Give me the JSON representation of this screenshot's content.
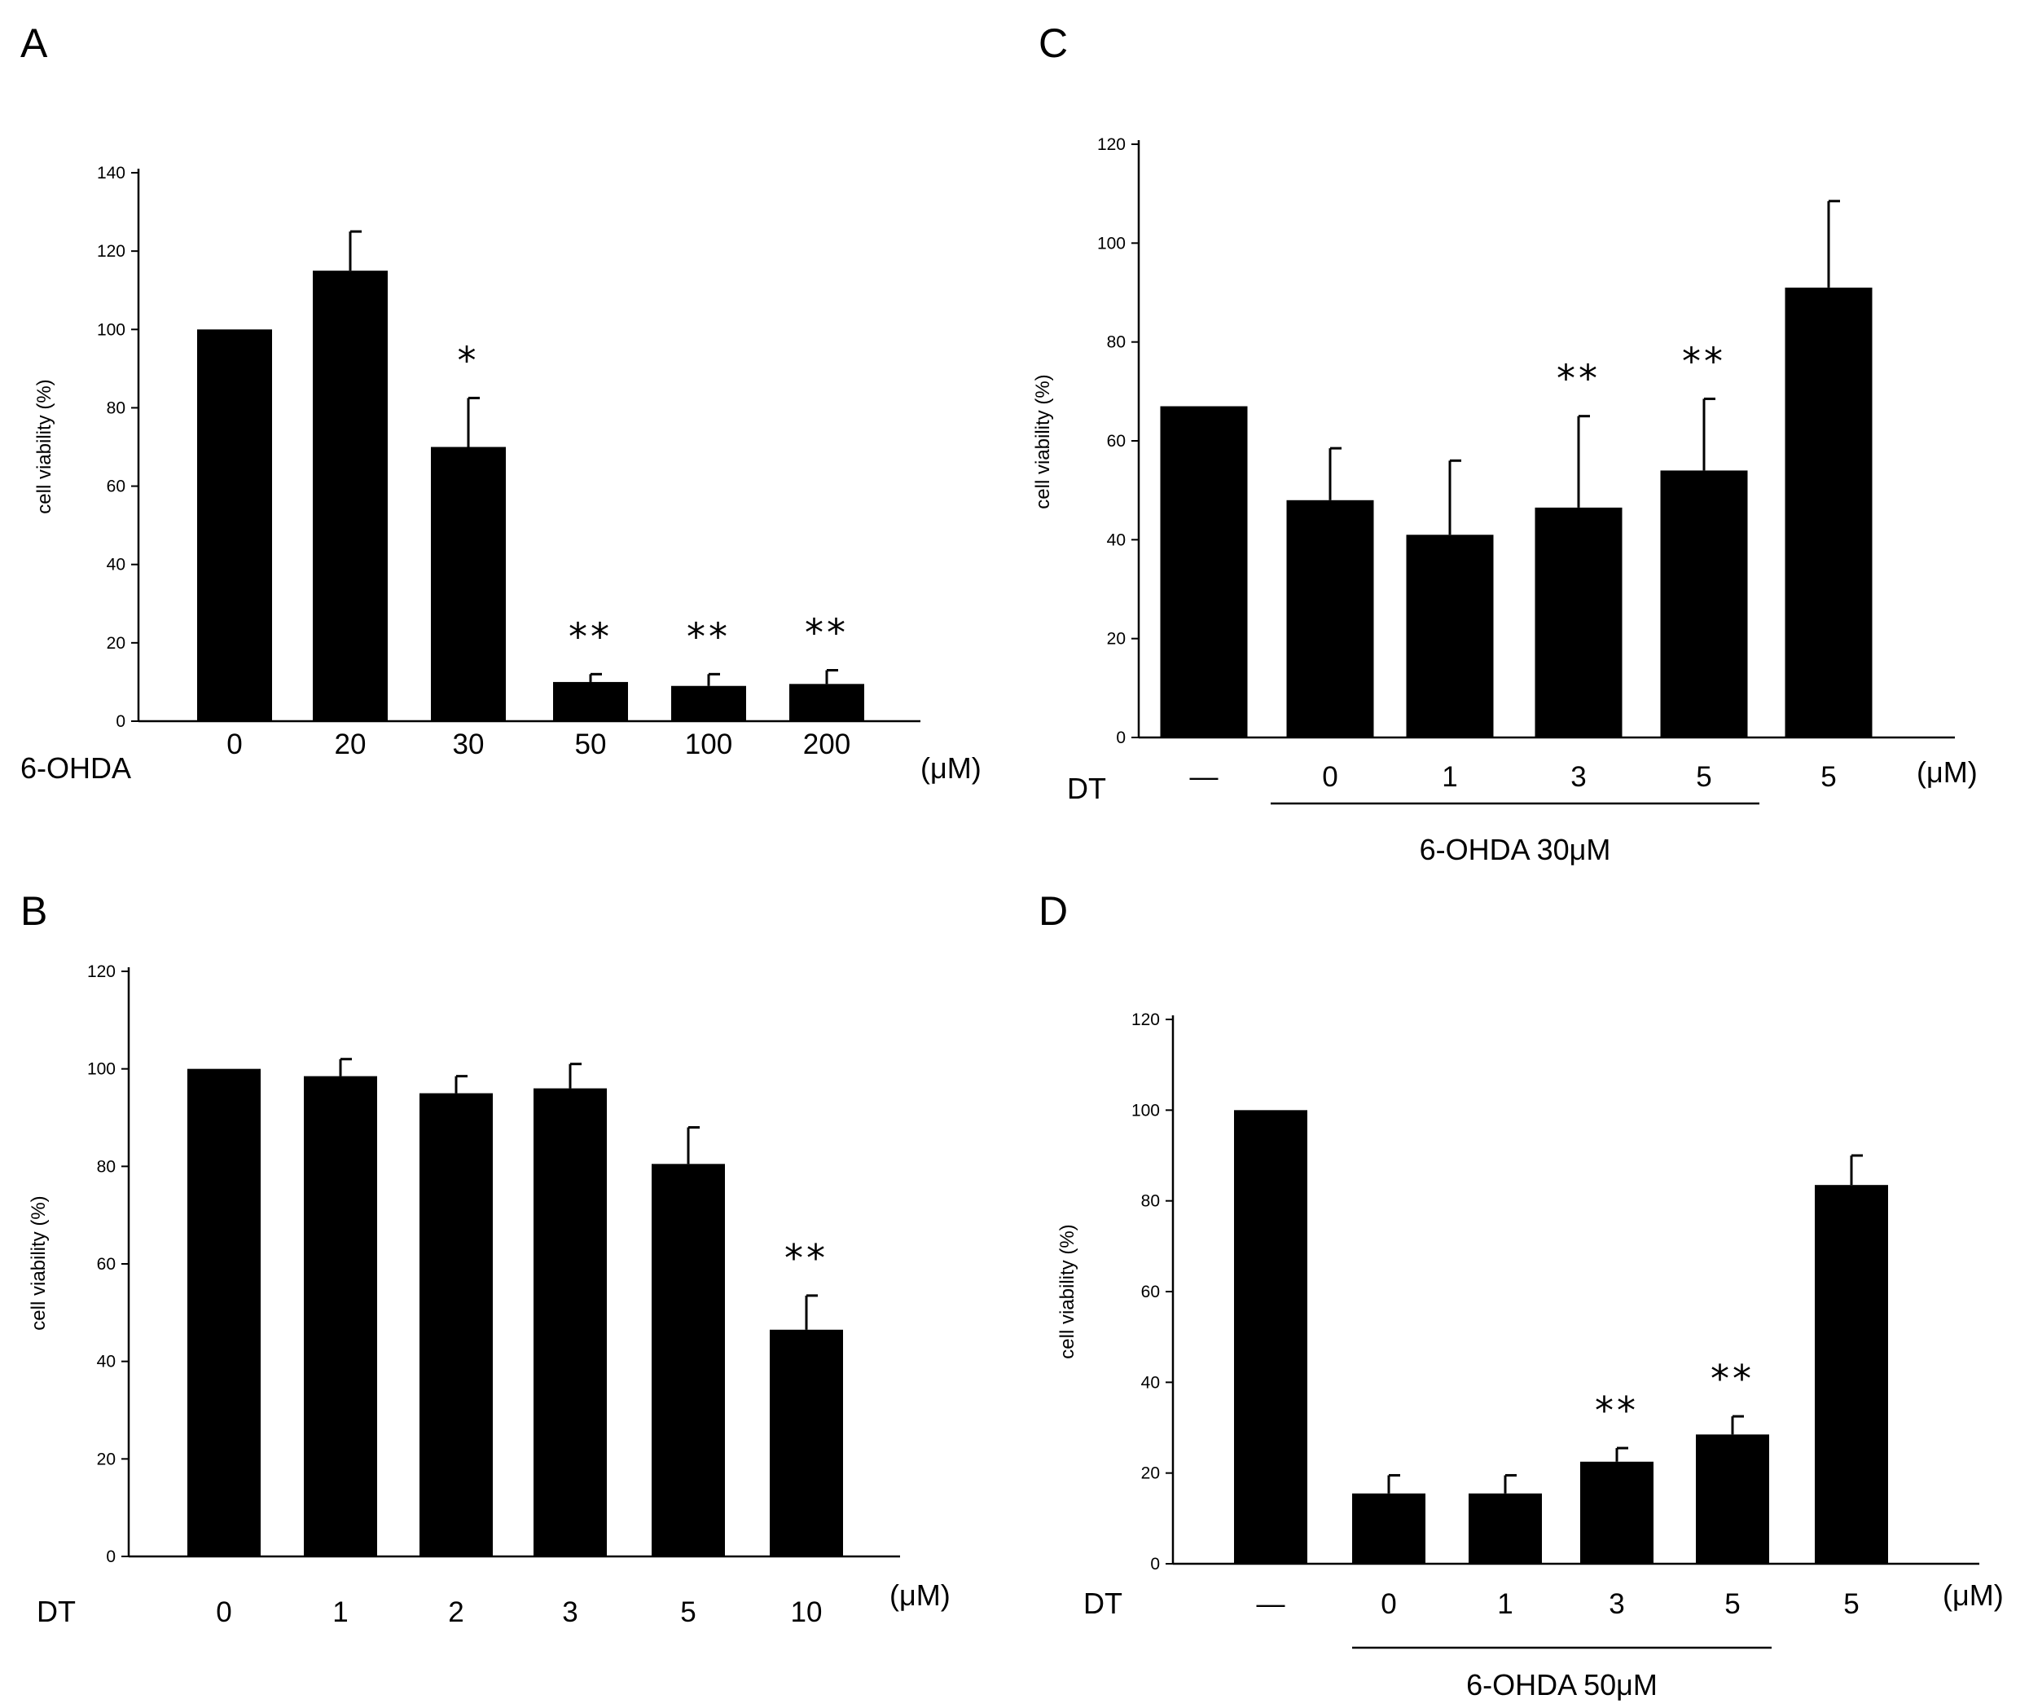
{
  "chart_data": [
    {
      "panel": "A",
      "type": "bar",
      "ylabel": "cell viability (%)",
      "ylim": [
        0,
        140
      ],
      "yticks": [
        0,
        20,
        40,
        60,
        80,
        100,
        120,
        140
      ],
      "row_label": "6-OHDA",
      "unit": "(μM)",
      "categories": [
        "0",
        "20",
        "30",
        "50",
        "100",
        "200"
      ],
      "values": [
        100,
        115,
        70,
        10,
        9,
        9.5
      ],
      "errors": [
        0,
        10,
        12.5,
        2,
        3,
        3.5
      ],
      "annotations": [
        "",
        "",
        "*",
        "**",
        "**",
        "**"
      ],
      "bracket": ""
    },
    {
      "panel": "B",
      "type": "bar",
      "ylabel": "cell viability (%)",
      "ylim": [
        0,
        120
      ],
      "yticks": [
        0,
        20,
        40,
        60,
        80,
        100,
        120
      ],
      "row_label": "DT",
      "unit": "(μM)",
      "categories": [
        "0",
        "1",
        "2",
        "3",
        "5",
        "10"
      ],
      "values": [
        100,
        98.5,
        95,
        96,
        80.5,
        46.5
      ],
      "errors": [
        0,
        3.5,
        3.5,
        5,
        7.5,
        7
      ],
      "annotations": [
        "",
        "",
        "",
        "",
        "",
        "**"
      ],
      "bracket": ""
    },
    {
      "panel": "C",
      "type": "bar",
      "ylabel": "cell viability (%)",
      "ylim": [
        0,
        120
      ],
      "yticks": [
        0,
        20,
        40,
        60,
        80,
        100,
        120
      ],
      "row_label": "DT",
      "unit": "(μM)",
      "categories": [
        "—",
        "0",
        "1",
        "3",
        "5",
        "5"
      ],
      "values": [
        67,
        48,
        41,
        46.5,
        54,
        91
      ],
      "errors": [
        0,
        10.5,
        15,
        18.5,
        14.5,
        17.5
      ],
      "annotations": [
        "",
        "",
        "",
        "**",
        "**",
        ""
      ],
      "bracket": "6-OHDA 30μM"
    },
    {
      "panel": "D",
      "type": "bar",
      "ylabel": "cell viability (%)",
      "ylim": [
        0,
        120
      ],
      "yticks": [
        0,
        20,
        40,
        60,
        80,
        100,
        120
      ],
      "row_label": "DT",
      "unit": "(μM)",
      "categories": [
        "—",
        "0",
        "1",
        "3",
        "5",
        "5"
      ],
      "values": [
        100,
        15.5,
        15.5,
        22.5,
        28.5,
        83.5
      ],
      "errors": [
        0,
        4,
        4,
        3,
        4,
        6.5
      ],
      "annotations": [
        "",
        "",
        "",
        "**",
        "**",
        ""
      ],
      "bracket": "6-OHDA 50μM"
    }
  ]
}
